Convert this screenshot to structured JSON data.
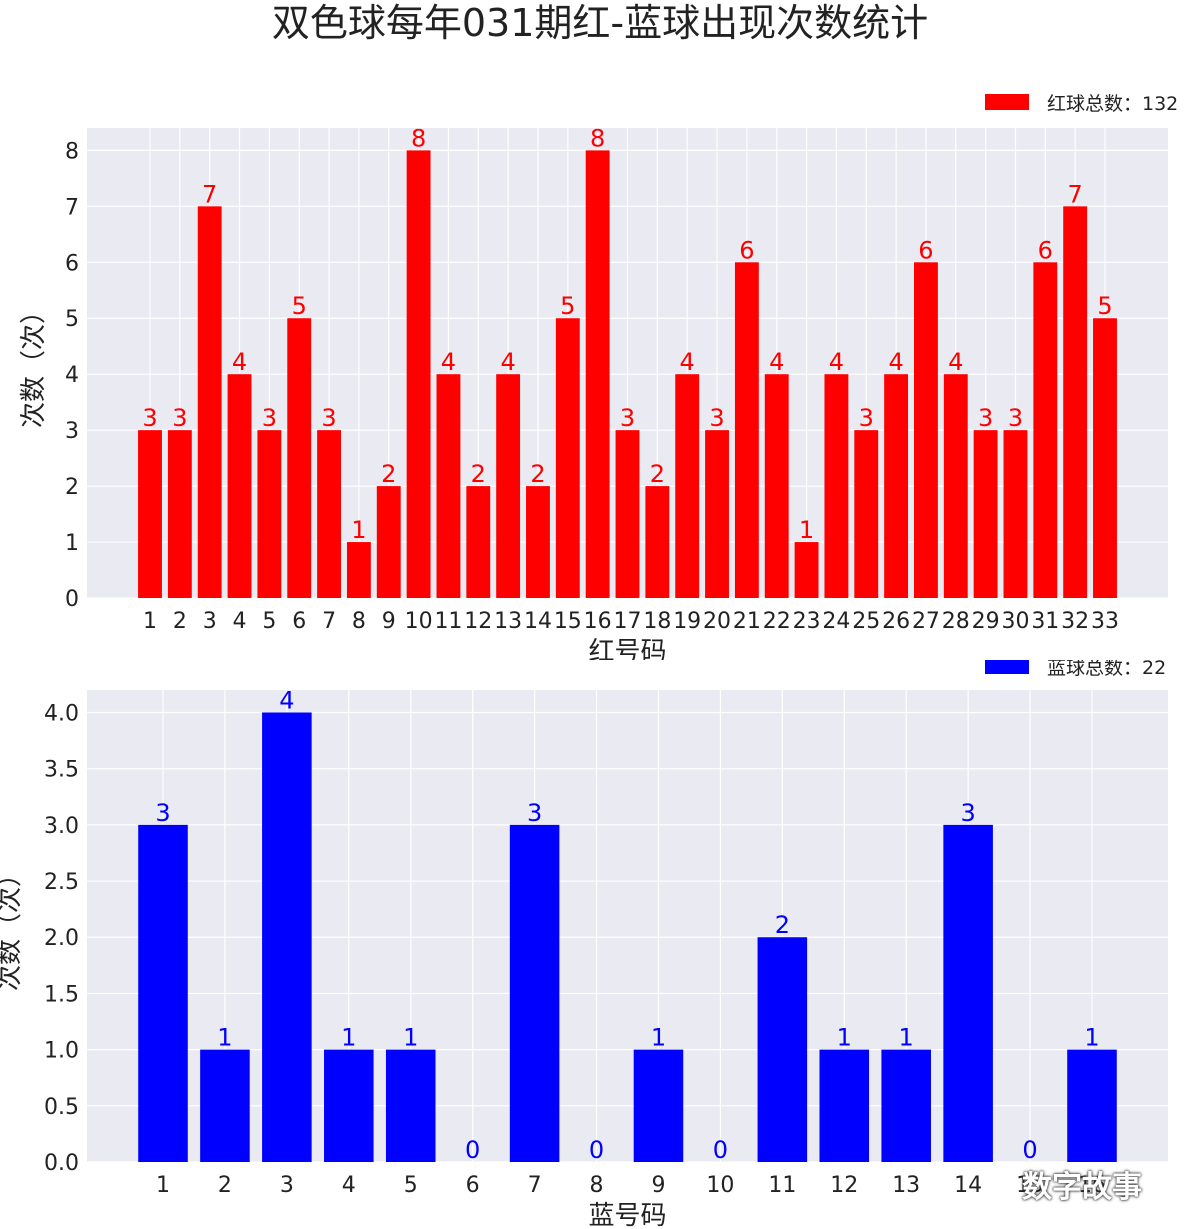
{
  "title": "双色球每年031期红-蓝球出现次数统计",
  "watermark": "数字故事",
  "chart_data": [
    {
      "type": "bar",
      "name": "red",
      "categories": [
        "1",
        "2",
        "3",
        "4",
        "5",
        "6",
        "7",
        "8",
        "9",
        "10",
        "11",
        "12",
        "13",
        "14",
        "15",
        "16",
        "17",
        "18",
        "19",
        "20",
        "21",
        "22",
        "23",
        "24",
        "25",
        "26",
        "27",
        "28",
        "29",
        "30",
        "31",
        "32",
        "33"
      ],
      "values": [
        3,
        3,
        7,
        4,
        3,
        5,
        3,
        1,
        2,
        8,
        4,
        2,
        4,
        2,
        5,
        8,
        3,
        2,
        4,
        3,
        6,
        4,
        1,
        4,
        3,
        4,
        6,
        4,
        3,
        3,
        6,
        7,
        5
      ],
      "data_labels": [
        "3",
        "3",
        "7",
        "4",
        "3",
        "5",
        "3",
        "1",
        "2",
        "8",
        "4",
        "2",
        "4",
        "2",
        "5",
        "8",
        "3",
        "2",
        "4",
        "3",
        "6",
        "4",
        "1",
        "4",
        "3",
        "4",
        "6",
        "4",
        "3",
        "3",
        "6",
        "7",
        "5"
      ],
      "series": [
        {
          "name": "红球总数：132",
          "values": [
            3,
            3,
            7,
            4,
            3,
            5,
            3,
            1,
            2,
            8,
            4,
            2,
            4,
            2,
            5,
            8,
            3,
            2,
            4,
            3,
            6,
            4,
            1,
            4,
            3,
            4,
            6,
            4,
            3,
            3,
            6,
            7,
            5
          ]
        }
      ],
      "xlabel": "红号码",
      "ylabel": "次数（次）",
      "yticks": [
        "0",
        "1",
        "2",
        "3",
        "4",
        "5",
        "6",
        "7",
        "8"
      ],
      "ylim": [
        0,
        8.4
      ],
      "grid": true,
      "legend": "top-right",
      "color": "#ff0000"
    },
    {
      "type": "bar",
      "name": "blue",
      "categories": [
        "1",
        "2",
        "3",
        "4",
        "5",
        "6",
        "7",
        "8",
        "9",
        "10",
        "11",
        "12",
        "13",
        "14",
        "15",
        "16"
      ],
      "values": [
        3,
        1,
        4,
        1,
        1,
        0,
        3,
        0,
        1,
        0,
        2,
        1,
        1,
        3,
        0,
        1
      ],
      "data_labels": [
        "3",
        "1",
        "4",
        "1",
        "1",
        "0",
        "3",
        "0",
        "1",
        "0",
        "2",
        "1",
        "1",
        "3",
        "0",
        "1"
      ],
      "series": [
        {
          "name": "蓝球总数：22",
          "values": [
            3,
            1,
            4,
            1,
            1,
            0,
            3,
            0,
            1,
            0,
            2,
            1,
            1,
            3,
            0,
            1
          ]
        }
      ],
      "xlabel": "蓝号码",
      "ylabel": "次数（次）",
      "yticks": [
        "0.0",
        "0.5",
        "1.0",
        "1.5",
        "2.0",
        "2.5",
        "3.0",
        "3.5",
        "4.0"
      ],
      "ylim": [
        0,
        4.2
      ],
      "grid": true,
      "legend": "top-right",
      "color": "#0000ff"
    }
  ]
}
